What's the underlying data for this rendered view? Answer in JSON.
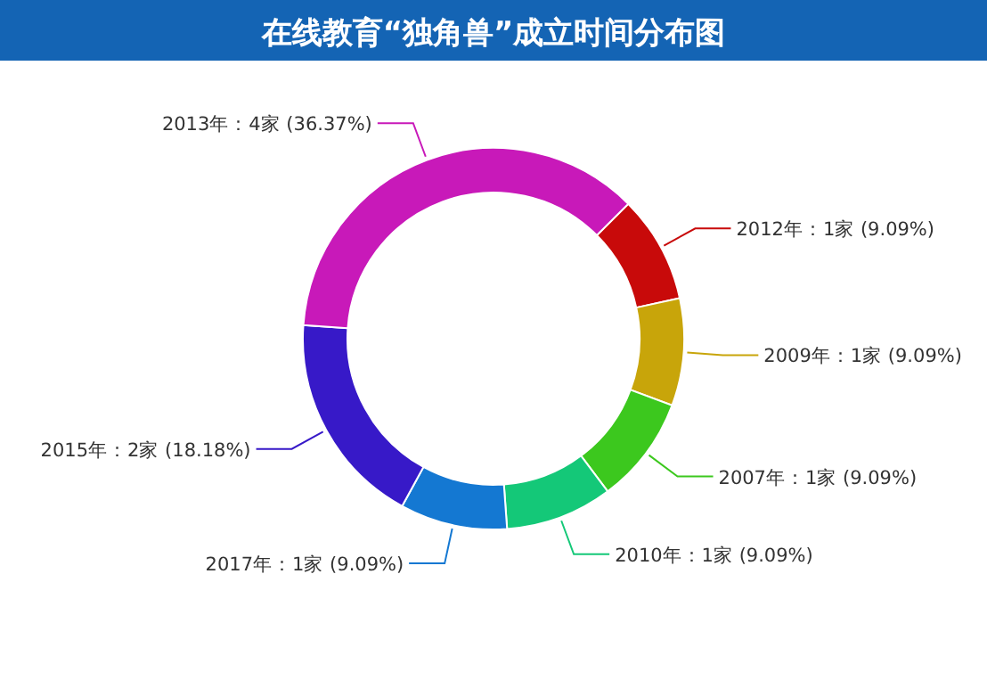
{
  "chart_data": {
    "type": "donut",
    "title": "在线教育“独角兽”成立时间分布图",
    "categories": [
      "2012年",
      "2009年",
      "2007年",
      "2010年",
      "2017年",
      "2015年",
      "2013年"
    ],
    "values": [
      1,
      1,
      1,
      1,
      1,
      2,
      4
    ],
    "value_labels": [
      "：1家 (9.09%)",
      "：1家 (9.09%)",
      "：1家 (9.09%)",
      "：1家 (9.09%)",
      "：1家 (9.09%)",
      "：2家 (18.18%)",
      "：4家 (36.37%)"
    ],
    "colors": [
      "#c80a0a",
      "#c8a50a",
      "#3cc81e",
      "#14c878",
      "#1478d2",
      "#3719c8",
      "#c819b9"
    ]
  }
}
